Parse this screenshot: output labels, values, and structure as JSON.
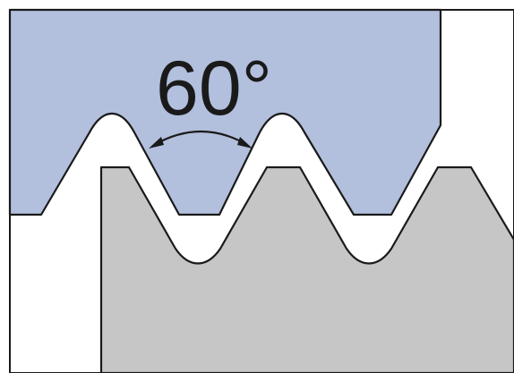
{
  "angle_label": "60°",
  "colors": {
    "internal_thread": "#b2bfdd",
    "external_thread": "#c6c6c6",
    "outline": "#1a1a1a",
    "background": "#ffffff"
  }
}
